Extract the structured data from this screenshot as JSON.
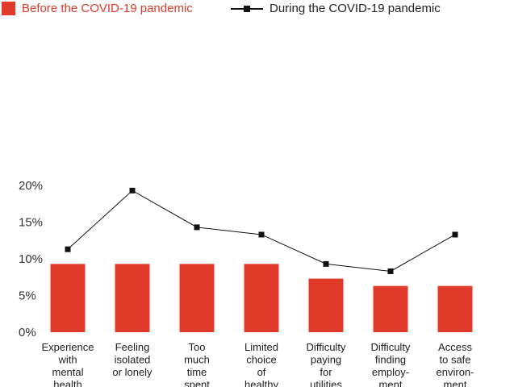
{
  "chart_data": {
    "type": "bar",
    "categories": [
      "Experience with mental health",
      "Feeling isolated or lonely",
      "Too much time spent",
      "Limited choice of healthy",
      "Difficulty paying for utilities",
      "Difficulty finding employ- ment",
      "Access to safe environ- ment"
    ],
    "category_lines": [
      [
        "Experience",
        "with",
        "mental",
        "health"
      ],
      [
        "Feeling",
        "isolated",
        "or lonely"
      ],
      [
        "Too",
        "much",
        "time",
        "spent"
      ],
      [
        "Limited",
        "choice",
        "of",
        "healthy"
      ],
      [
        "Difficulty",
        "paying",
        "for",
        "utilities"
      ],
      [
        "Difficulty",
        "finding",
        "employ-",
        "ment"
      ],
      [
        "Access",
        "to safe",
        "environ-",
        "ment"
      ]
    ],
    "series": [
      {
        "name": "Before the COVID-19 pandemic",
        "type": "bar",
        "color": "#e03a2b",
        "values": [
          9.3,
          9.3,
          9.3,
          9.3,
          7.3,
          6.3,
          6.3
        ]
      },
      {
        "name": "During the COVID-19 pandemic",
        "type": "line",
        "color": "#111111",
        "values": [
          11.3,
          19.3,
          14.3,
          13.3,
          9.3,
          8.3,
          13.3
        ]
      }
    ],
    "y_ticks": [
      "0%",
      "5%",
      "10%",
      "15%",
      "20%"
    ],
    "ylim": [
      0,
      20
    ],
    "grid": false,
    "legend_position": "top"
  }
}
